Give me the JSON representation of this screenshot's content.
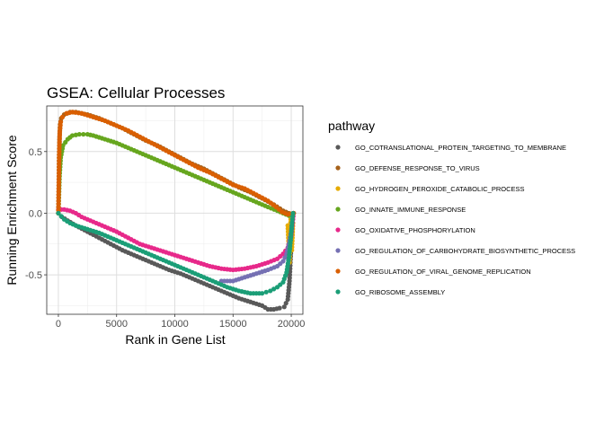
{
  "chart_data": {
    "type": "scatter",
    "title": "GSEA: Cellular Processes",
    "xlabel": "Rank in Gene List",
    "ylabel": "Running Enrichment Score",
    "xlim": [
      -1000,
      21000
    ],
    "ylim": [
      -0.82,
      0.87
    ],
    "x_ticks": [
      0,
      5000,
      10000,
      15000,
      20000
    ],
    "x_tick_labels": [
      "0",
      "5000",
      "10000",
      "15000",
      "20000"
    ],
    "y_ticks": [
      -0.5,
      0.0,
      0.5
    ],
    "y_tick_labels": [
      "-0.5",
      "0.0",
      "0.5"
    ],
    "grid": true,
    "legend": {
      "title": "pathway",
      "position": "right"
    },
    "series": [
      {
        "name": "GO_COTRANSLATIONAL_PROTEIN_TARGETING_TO_MEMBRANE",
        "color": "#595959",
        "points": [
          [
            0,
            0.0
          ],
          [
            300,
            -0.03
          ],
          [
            800,
            -0.06
          ],
          [
            1500,
            -0.1
          ],
          [
            2500,
            -0.15
          ],
          [
            3500,
            -0.2
          ],
          [
            4500,
            -0.25
          ],
          [
            5500,
            -0.3
          ],
          [
            6500,
            -0.34
          ],
          [
            7500,
            -0.38
          ],
          [
            8500,
            -0.42
          ],
          [
            9500,
            -0.46
          ],
          [
            10500,
            -0.49
          ],
          [
            11500,
            -0.53
          ],
          [
            12500,
            -0.57
          ],
          [
            13500,
            -0.61
          ],
          [
            14500,
            -0.65
          ],
          [
            15500,
            -0.69
          ],
          [
            16500,
            -0.72
          ],
          [
            17500,
            -0.75
          ],
          [
            18000,
            -0.78
          ],
          [
            18500,
            -0.78
          ],
          [
            19000,
            -0.77
          ],
          [
            19400,
            -0.76
          ],
          [
            19700,
            -0.7
          ],
          [
            19850,
            -0.55
          ],
          [
            19950,
            -0.35
          ],
          [
            20050,
            -0.18
          ],
          [
            20100,
            -0.05
          ],
          [
            20200,
            0.0
          ]
        ]
      },
      {
        "name": "GO_DEFENSE_RESPONSE_TO_VIRUS",
        "color": "#A6611A",
        "points": [
          [
            0,
            0.0
          ],
          [
            30,
            0.2
          ],
          [
            60,
            0.45
          ],
          [
            100,
            0.62
          ],
          [
            150,
            0.72
          ],
          [
            250,
            0.77
          ],
          [
            500,
            0.8
          ],
          [
            1000,
            0.82
          ],
          [
            1500,
            0.82
          ],
          [
            2500,
            0.8
          ],
          [
            3500,
            0.77
          ],
          [
            4500,
            0.73
          ],
          [
            5500,
            0.69
          ],
          [
            6500,
            0.64
          ],
          [
            7500,
            0.59
          ],
          [
            8500,
            0.55
          ],
          [
            9500,
            0.5
          ],
          [
            10500,
            0.45
          ],
          [
            11500,
            0.4
          ],
          [
            12500,
            0.36
          ],
          [
            13500,
            0.31
          ],
          [
            14500,
            0.26
          ],
          [
            15500,
            0.21
          ],
          [
            16500,
            0.17
          ],
          [
            17500,
            0.12
          ],
          [
            18500,
            0.07
          ],
          [
            19300,
            0.02
          ],
          [
            19800,
            0.0
          ],
          [
            20200,
            0.0
          ]
        ]
      },
      {
        "name": "GO_HYDROGEN_PEROXIDE_CATABOLIC_PROCESS",
        "color": "#E6AB02",
        "points": [
          [
            19700,
            -0.1
          ],
          [
            19800,
            -0.3
          ],
          [
            19850,
            -0.4
          ],
          [
            19900,
            -0.25
          ],
          [
            19950,
            -0.05
          ],
          [
            20000,
            -0.15
          ],
          [
            20050,
            -0.3
          ],
          [
            20100,
            -0.2
          ],
          [
            20150,
            -0.08
          ]
        ]
      },
      {
        "name": "GO_INNATE_IMMUNE_RESPONSE",
        "color": "#66A61E",
        "points": [
          [
            0,
            0.0
          ],
          [
            50,
            0.15
          ],
          [
            100,
            0.3
          ],
          [
            200,
            0.45
          ],
          [
            400,
            0.55
          ],
          [
            800,
            0.6
          ],
          [
            1200,
            0.63
          ],
          [
            1800,
            0.64
          ],
          [
            2500,
            0.64
          ],
          [
            3000,
            0.63
          ],
          [
            4000,
            0.6
          ],
          [
            5000,
            0.57
          ],
          [
            6000,
            0.53
          ],
          [
            7000,
            0.49
          ],
          [
            8000,
            0.45
          ],
          [
            9000,
            0.41
          ],
          [
            10000,
            0.37
          ],
          [
            11000,
            0.33
          ],
          [
            12000,
            0.29
          ],
          [
            13000,
            0.25
          ],
          [
            14000,
            0.21
          ],
          [
            15000,
            0.17
          ],
          [
            16000,
            0.13
          ],
          [
            17000,
            0.09
          ],
          [
            18000,
            0.05
          ],
          [
            18800,
            0.02
          ],
          [
            19300,
            0.0
          ],
          [
            19800,
            -0.02
          ],
          [
            20100,
            -0.02
          ],
          [
            20200,
            0.0
          ]
        ]
      },
      {
        "name": "GO_OXIDATIVE_PHOSPHORYLATION",
        "color": "#E7298A",
        "points": [
          [
            0,
            0.03
          ],
          [
            500,
            0.03
          ],
          [
            1000,
            0.02
          ],
          [
            1500,
            0.0
          ],
          [
            2000,
            -0.03
          ],
          [
            2500,
            -0.05
          ],
          [
            3000,
            -0.07
          ],
          [
            3500,
            -0.09
          ],
          [
            4000,
            -0.11
          ],
          [
            5000,
            -0.15
          ],
          [
            6000,
            -0.2
          ],
          [
            7000,
            -0.25
          ],
          [
            8000,
            -0.28
          ],
          [
            9000,
            -0.31
          ],
          [
            10000,
            -0.34
          ],
          [
            11000,
            -0.37
          ],
          [
            12000,
            -0.4
          ],
          [
            13000,
            -0.43
          ],
          [
            14000,
            -0.45
          ],
          [
            15000,
            -0.46
          ],
          [
            16000,
            -0.45
          ],
          [
            17000,
            -0.43
          ],
          [
            18000,
            -0.4
          ],
          [
            18800,
            -0.37
          ],
          [
            19300,
            -0.33
          ],
          [
            19700,
            -0.28
          ],
          [
            20000,
            -0.18
          ],
          [
            20150,
            -0.05
          ],
          [
            20200,
            0.0
          ]
        ]
      },
      {
        "name": "GO_REGULATION_OF_CARBOHYDRATE_BIOSYNTHETIC_PROCESS",
        "color": "#7570B3",
        "points": [
          [
            14000,
            -0.55
          ],
          [
            15000,
            -0.55
          ],
          [
            16000,
            -0.52
          ],
          [
            17000,
            -0.49
          ],
          [
            18000,
            -0.46
          ],
          [
            18800,
            -0.43
          ],
          [
            19300,
            -0.39
          ],
          [
            19600,
            -0.33
          ],
          [
            19800,
            -0.25
          ],
          [
            20000,
            -0.14
          ],
          [
            20100,
            -0.05
          ]
        ]
      },
      {
        "name": "GO_REGULATION_OF_VIRAL_GENOME_REPLICATION",
        "color": "#D95F02",
        "points": [
          [
            0,
            0.0
          ],
          [
            40,
            0.25
          ],
          [
            80,
            0.5
          ],
          [
            120,
            0.66
          ],
          [
            200,
            0.74
          ],
          [
            350,
            0.78
          ],
          [
            700,
            0.81
          ],
          [
            1200,
            0.82
          ],
          [
            2000,
            0.81
          ],
          [
            3000,
            0.78
          ],
          [
            4000,
            0.75
          ],
          [
            5000,
            0.71
          ],
          [
            6000,
            0.67
          ],
          [
            7000,
            0.62
          ],
          [
            8000,
            0.57
          ],
          [
            9000,
            0.52
          ],
          [
            10000,
            0.47
          ],
          [
            11000,
            0.42
          ],
          [
            12000,
            0.37
          ],
          [
            13000,
            0.33
          ],
          [
            14000,
            0.28
          ],
          [
            15000,
            0.23
          ],
          [
            16000,
            0.2
          ],
          [
            17000,
            0.15
          ],
          [
            18000,
            0.1
          ],
          [
            18700,
            0.05
          ],
          [
            19200,
            0.01
          ],
          [
            19700,
            -0.01
          ],
          [
            20200,
            0.0
          ]
        ]
      },
      {
        "name": "GO_RIBOSOME_ASSEMBLY",
        "color": "#1B9E77",
        "points": [
          [
            0,
            0.0
          ],
          [
            500,
            -0.05
          ],
          [
            1000,
            -0.08
          ],
          [
            1500,
            -0.1
          ],
          [
            2500,
            -0.13
          ],
          [
            3500,
            -0.16
          ],
          [
            4500,
            -0.2
          ],
          [
            5500,
            -0.24
          ],
          [
            6500,
            -0.28
          ],
          [
            7500,
            -0.32
          ],
          [
            8500,
            -0.36
          ],
          [
            9500,
            -0.4
          ],
          [
            10500,
            -0.44
          ],
          [
            11500,
            -0.48
          ],
          [
            12500,
            -0.52
          ],
          [
            13500,
            -0.56
          ],
          [
            14500,
            -0.6
          ],
          [
            15500,
            -0.63
          ],
          [
            16500,
            -0.65
          ],
          [
            17500,
            -0.65
          ],
          [
            18200,
            -0.63
          ],
          [
            18800,
            -0.6
          ],
          [
            19300,
            -0.56
          ],
          [
            19600,
            -0.48
          ],
          [
            19800,
            -0.36
          ],
          [
            19950,
            -0.22
          ],
          [
            20050,
            -0.1
          ],
          [
            20150,
            0.0
          ]
        ]
      }
    ]
  }
}
